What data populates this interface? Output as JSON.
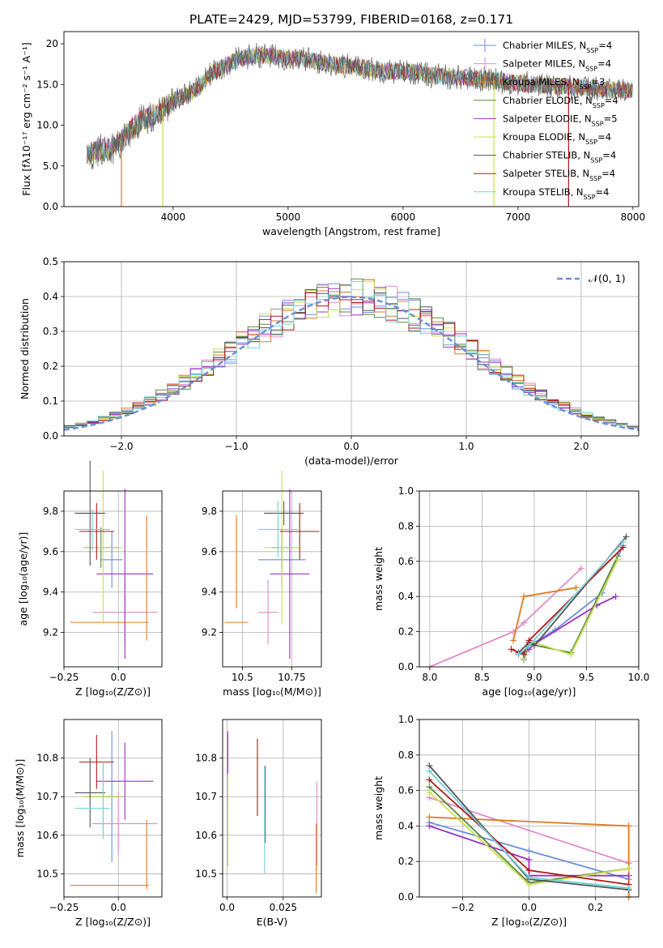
{
  "figure": {
    "title": "PLATE=2429, MJD=53799, FIBERID=0168, z=0.171"
  },
  "legend": {
    "labels": [
      {
        "pre": "Chabrier MILES, N",
        "sub": "SSP",
        "post": "=4",
        "color": "#6a8fdc"
      },
      {
        "pre": "Salpeter MILES, N",
        "sub": "SSP",
        "post": "=4",
        "color": "#e28bc7"
      },
      {
        "pre": "Kroupa MILES, N",
        "sub": "SSP",
        "post": "=3",
        "color": "#e07a20"
      },
      {
        "pre": "Chabrier ELODIE, N",
        "sub": "SSP",
        "post": "=4",
        "color": "#5a8a3a"
      },
      {
        "pre": "Salpeter ELODIE, N",
        "sub": "SSP",
        "post": "=5",
        "color": "#9b30c0"
      },
      {
        "pre": "Kroupa ELODIE, N",
        "sub": "SSP",
        "post": "=4",
        "color": "#c8e050"
      },
      {
        "pre": "Chabrier STELIB, N",
        "sub": "SSP",
        "post": "=4",
        "color": "#555555"
      },
      {
        "pre": "Salpeter STELIB, N",
        "sub": "SSP",
        "post": "=4",
        "color": "#b01818"
      },
      {
        "pre": "Kroupa STELIB, N",
        "sub": "SSP",
        "post": "=4",
        "color": "#70d0d8"
      }
    ],
    "normal_label": "𝒩(0, 1)",
    "normal_color": "#6a8fdc"
  },
  "chart_data": [
    {
      "type": "line",
      "id": "spectrum",
      "xlabel": "wavelength [Angstrom, rest frame]",
      "ylabel": "Flux [fλ10⁻¹⁷ erg cm⁻² s⁻¹ A⁻¹]",
      "xlim": [
        3050,
        8050
      ],
      "ylim": [
        0,
        21.5
      ],
      "xticks": [
        4000,
        5000,
        6000,
        7000,
        8000
      ],
      "yticks": [
        0,
        5,
        10,
        15,
        20
      ],
      "x": [
        3250,
        3350,
        3450,
        3550,
        3650,
        3750,
        3850,
        3950,
        4050,
        4150,
        4250,
        4350,
        4450,
        4550,
        4650,
        4750,
        4850,
        4950,
        5050,
        5150,
        5250,
        5350,
        5450,
        5550,
        5650,
        5750,
        5850,
        5950,
        6050,
        6150,
        6250,
        6350,
        6450,
        6550,
        6650,
        6750,
        6850,
        6950,
        7050,
        7150,
        7250,
        7350,
        7450,
        7550,
        7650,
        7750
      ],
      "y": [
        6.3,
        6.9,
        7.0,
        8.0,
        9.8,
        10.8,
        11.4,
        12.5,
        13.4,
        13.9,
        15.0,
        16.6,
        17.3,
        18.0,
        18.4,
        18.6,
        18.5,
        18.3,
        18.3,
        18.1,
        17.8,
        17.6,
        17.4,
        17.2,
        17.1,
        16.8,
        16.7,
        16.6,
        16.6,
        16.3,
        16.1,
        16.0,
        15.9,
        15.8,
        15.7,
        15.6,
        15.4,
        15.2,
        15.1,
        15.0,
        14.9,
        14.8,
        14.7,
        14.6,
        14.5,
        14.3
      ],
      "drops": [
        {
          "x": 3550,
          "color": "#e07a20"
        },
        {
          "x": 3910,
          "color": "#c8e050"
        },
        {
          "x": 6790,
          "color": "#c8e050"
        },
        {
          "x": 7440,
          "color": "#b01818"
        }
      ]
    },
    {
      "type": "histogram",
      "id": "residuals",
      "xlabel": "(data-model)/error",
      "ylabel": "Normed distribution",
      "xlim": [
        -2.5,
        2.5
      ],
      "ylim": [
        0,
        0.5
      ],
      "xticks": [
        -2,
        -1,
        0,
        1,
        2
      ],
      "yticks": [
        0.0,
        0.1,
        0.2,
        0.3,
        0.4,
        0.5
      ],
      "bin_width": 0.1,
      "normal_curve": {
        "mean": 0,
        "sigma": 1
      }
    },
    {
      "type": "scatter",
      "id": "age-vs-Z",
      "xlabel": "Z [log₁₀(Z/Z⊙)]",
      "ylabel": "age  [log₁₀(age/yr)]",
      "xlim": [
        -0.25,
        0.2
      ],
      "ylim": [
        9.03,
        9.9
      ],
      "xticks": [
        -0.25,
        0.0
      ],
      "yticks": [
        9.2,
        9.4,
        9.6,
        9.8
      ],
      "points": [
        {
          "x": -0.03,
          "y": 9.56,
          "xerr": 0.05,
          "yerr": 0.14,
          "color": "#6a8fdc"
        },
        {
          "x": 0.03,
          "y": 9.3,
          "xerr": 0.15,
          "yerr": 0.16,
          "color": "#e28bc7"
        },
        {
          "x": -0.04,
          "y": 9.25,
          "xerr": 0.18,
          "yerr": 0.0,
          "color": "#e07a20"
        },
        {
          "x": 0.13,
          "y": 9.47,
          "xerr": 0.0,
          "yerr": 0.31,
          "color": "#e07a20"
        },
        {
          "x": -0.08,
          "y": 9.62,
          "xerr": 0.08,
          "yerr": 0.1,
          "color": "#5a8a3a"
        },
        {
          "x": 0.03,
          "y": 9.49,
          "xerr": 0.13,
          "yerr": 0.42,
          "color": "#9b30c0"
        },
        {
          "x": -0.07,
          "y": 9.62,
          "xerr": 0.09,
          "yerr": 0.38,
          "color": "#c8e050"
        },
        {
          "x": -0.13,
          "y": 9.79,
          "xerr": 0.07,
          "yerr": 0.26,
          "color": "#555555"
        },
        {
          "x": -0.1,
          "y": 9.7,
          "xerr": 0.08,
          "yerr": 0.14,
          "color": "#b01818"
        },
        {
          "x": -0.12,
          "y": 9.71,
          "xerr": 0.08,
          "yerr": 0.1,
          "color": "#70d0d8"
        }
      ]
    },
    {
      "type": "scatter",
      "id": "age-vs-mass",
      "xlabel": "mass [log₁₀(M/M⊙)]",
      "ylabel": "",
      "xlim": [
        10.4,
        10.9
      ],
      "ylim": [
        9.03,
        9.9
      ],
      "xticks": [
        10.5,
        10.75
      ],
      "yticks": [
        9.2,
        9.4,
        9.6,
        9.8
      ],
      "points": [
        {
          "x": 10.7,
          "y": 9.56,
          "xerr": 0.12,
          "yerr": 0.14,
          "color": "#6a8fdc"
        },
        {
          "x": 10.63,
          "y": 9.3,
          "xerr": 0.05,
          "yerr": 0.16,
          "color": "#e28bc7"
        },
        {
          "x": 10.47,
          "y": 9.25,
          "xerr": 0.06,
          "yerr": 0.0,
          "color": "#e07a20"
        },
        {
          "x": 10.47,
          "y": 9.55,
          "xerr": 0.0,
          "yerr": 0.23,
          "color": "#e07a20"
        },
        {
          "x": 10.7,
          "y": 9.62,
          "xerr": 0.05,
          "yerr": 0.1,
          "color": "#5a8a3a"
        },
        {
          "x": 10.74,
          "y": 9.49,
          "xerr": 0.1,
          "yerr": 0.42,
          "color": "#9b30c0"
        },
        {
          "x": 10.7,
          "y": 9.62,
          "xerr": 0.09,
          "yerr": 0.38,
          "color": "#c8e050"
        },
        {
          "x": 10.71,
          "y": 9.79,
          "xerr": 0.1,
          "yerr": 0.06,
          "color": "#555555"
        },
        {
          "x": 10.79,
          "y": 9.7,
          "xerr": 0.1,
          "yerr": 0.14,
          "color": "#b01818"
        },
        {
          "x": 10.68,
          "y": 9.71,
          "xerr": 0.1,
          "yerr": 0.14,
          "color": "#70d0d8"
        }
      ]
    },
    {
      "type": "line",
      "id": "massweight-vs-age",
      "xlabel": "age  [log₁₀(age/yr)]",
      "ylabel": "mass weight",
      "xlim": [
        7.9,
        10.0
      ],
      "ylim": [
        0,
        1.0
      ],
      "xticks": [
        8.0,
        8.5,
        9.0,
        9.5,
        10.0
      ],
      "yticks": [
        0.0,
        0.2,
        0.4,
        0.6,
        0.8,
        1.0
      ],
      "series": [
        {
          "color": "#6a8fdc",
          "x": [
            8.9,
            8.95,
            9.2,
            9.65,
            9.85
          ],
          "y": [
            0.04,
            0.12,
            0.21,
            0.42,
            0.69
          ]
        },
        {
          "color": "#e28bc7",
          "x": [
            8.0,
            8.8,
            8.9,
            9.45
          ],
          "y": [
            0.0,
            0.2,
            0.25,
            0.56
          ]
        },
        {
          "color": "#e07a20",
          "x": [
            8.8,
            8.9,
            9.4
          ],
          "y": [
            0.15,
            0.4,
            0.45
          ]
        },
        {
          "color": "#5a8a3a",
          "x": [
            8.9,
            8.95,
            9.35,
            9.8
          ],
          "y": [
            0.05,
            0.13,
            0.08,
            0.63
          ]
        },
        {
          "color": "#9b30c0",
          "x": [
            8.85,
            8.95,
            9.0,
            9.6,
            9.78
          ],
          "y": [
            0.07,
            0.1,
            0.13,
            0.35,
            0.4
          ]
        },
        {
          "color": "#c8e050",
          "x": [
            8.9,
            8.95,
            9.35,
            9.8
          ],
          "y": [
            0.05,
            0.15,
            0.07,
            0.61
          ]
        },
        {
          "color": "#555555",
          "x": [
            8.85,
            8.95,
            9.0,
            9.88
          ],
          "y": [
            0.08,
            0.14,
            0.12,
            0.74
          ]
        },
        {
          "color": "#b01818",
          "x": [
            8.78,
            8.9,
            8.95,
            9.85
          ],
          "y": [
            0.1,
            0.07,
            0.15,
            0.68
          ]
        },
        {
          "color": "#70d0d8",
          "x": [
            8.85,
            8.95,
            9.85
          ],
          "y": [
            0.07,
            0.12,
            0.71
          ]
        }
      ]
    },
    {
      "type": "scatter",
      "id": "mass-vs-Z",
      "xlabel": "Z [log₁₀(Z/Z⊙)]",
      "ylabel": "mass [log₁₀(M/M⊙)]",
      "xlim": [
        -0.25,
        0.2
      ],
      "ylim": [
        10.44,
        10.9
      ],
      "xticks": [
        -0.25,
        0.0
      ],
      "yticks": [
        10.5,
        10.6,
        10.7,
        10.8
      ],
      "points": [
        {
          "x": -0.03,
          "y": 10.7,
          "xerr": 0.05,
          "yerr": 0.17,
          "color": "#6a8fdc"
        },
        {
          "x": 0.03,
          "y": 10.63,
          "xerr": 0.15,
          "yerr": 0.0,
          "color": "#e28bc7"
        },
        {
          "x": 0.0,
          "y": 10.63,
          "xerr": 0.0,
          "yerr": 0.08,
          "color": "#e28bc7"
        },
        {
          "x": -0.04,
          "y": 10.47,
          "xerr": 0.18,
          "yerr": 0.0,
          "color": "#e07a20"
        },
        {
          "x": 0.13,
          "y": 10.55,
          "xerr": 0.0,
          "yerr": 0.09,
          "color": "#e07a20"
        },
        {
          "x": -0.08,
          "y": 10.7,
          "xerr": 0.08,
          "yerr": 0.0,
          "color": "#5a8a3a"
        },
        {
          "x": 0.03,
          "y": 10.74,
          "xerr": 0.13,
          "yerr": 0.1,
          "color": "#9b30c0"
        },
        {
          "x": -0.07,
          "y": 10.7,
          "xerr": 0.09,
          "yerr": 0.09,
          "color": "#c8e050"
        },
        {
          "x": -0.13,
          "y": 10.71,
          "xerr": 0.07,
          "yerr": 0.09,
          "color": "#555555"
        },
        {
          "x": -0.1,
          "y": 10.79,
          "xerr": 0.08,
          "yerr": 0.07,
          "color": "#b01818"
        },
        {
          "x": -0.12,
          "y": 10.67,
          "xerr": 0.08,
          "yerr": 0.0,
          "color": "#70d0d8"
        },
        {
          "x": -0.07,
          "y": 10.69,
          "xerr": 0.0,
          "yerr": 0.1,
          "color": "#70d0d8"
        }
      ]
    },
    {
      "type": "scatter",
      "id": "mass-vs-EBV",
      "xlabel": "E(B-V)",
      "ylabel": "",
      "xlim": [
        -0.002,
        0.042
      ],
      "ylim": [
        10.44,
        10.9
      ],
      "xticks": [
        0.0,
        0.025
      ],
      "yticks": [
        10.5,
        10.6,
        10.7,
        10.8
      ],
      "points": [
        {
          "x": 0.0003,
          "y": 10.69,
          "xerr": 0.0,
          "yerr": 0.17,
          "color": "#6a8fdc"
        },
        {
          "x": 0.04,
          "y": 10.63,
          "xerr": 0.0,
          "yerr": 0.11,
          "color": "#e28bc7"
        },
        {
          "x": 0.0397,
          "y": 10.54,
          "xerr": 0.0,
          "yerr": 0.09,
          "color": "#e07a20"
        },
        {
          "x": 0.0003,
          "y": 10.77,
          "xerr": 0.0,
          "yerr": 0.1,
          "color": "#9b30c0"
        },
        {
          "x": 0.0003,
          "y": 10.64,
          "xerr": 0.0,
          "yerr": 0.12,
          "color": "#c8e050"
        },
        {
          "x": 0.017,
          "y": 10.68,
          "xerr": 0.0,
          "yerr": 0.1,
          "color": "#555555"
        },
        {
          "x": 0.0135,
          "y": 10.75,
          "xerr": 0.0,
          "yerr": 0.1,
          "color": "#b01818"
        },
        {
          "x": 0.0167,
          "y": 10.64,
          "xerr": 0.0,
          "yerr": 0.14,
          "color": "#70d0d8"
        }
      ]
    },
    {
      "type": "line",
      "id": "massweight-vs-Z",
      "xlabel": "Z [log₁₀(Z/Z⊙)]",
      "ylabel": "mass weight",
      "xlim": [
        -0.33,
        0.33
      ],
      "ylim": [
        0,
        1.0
      ],
      "xticks": [
        -0.2,
        0.0,
        0.2
      ],
      "yticks": [
        0.0,
        0.2,
        0.4,
        0.6,
        0.8,
        1.0
      ],
      "series": [
        {
          "color": "#6a8fdc",
          "x": [
            -0.3,
            0.0,
            0.3
          ],
          "y": [
            0.42,
            0.26,
            0.1
          ]
        },
        {
          "color": "#e28bc7",
          "x": [
            -0.3,
            0.3
          ],
          "y": [
            0.56,
            0.19
          ]
        },
        {
          "color": "#e07a20",
          "x": [
            -0.3,
            0.3,
            0.3
          ],
          "y": [
            0.45,
            0.4,
            0.0
          ]
        },
        {
          "color": "#5a8a3a",
          "x": [
            -0.3,
            0.0,
            0.3
          ],
          "y": [
            0.62,
            0.08,
            0.16
          ]
        },
        {
          "color": "#9b30c0",
          "x": [
            -0.3,
            0.0,
            0.0,
            0.3
          ],
          "y": [
            0.4,
            0.21,
            0.12,
            0.12
          ]
        },
        {
          "color": "#c8e050",
          "x": [
            -0.3,
            0.0,
            0.3
          ],
          "y": [
            0.59,
            0.07,
            0.16
          ]
        },
        {
          "color": "#555555",
          "x": [
            -0.3,
            0.0,
            0.3
          ],
          "y": [
            0.74,
            0.1,
            0.04
          ]
        },
        {
          "color": "#b01818",
          "x": [
            -0.3,
            0.0,
            0.3
          ],
          "y": [
            0.66,
            0.15,
            0.07
          ]
        },
        {
          "color": "#70d0d8",
          "x": [
            -0.3,
            0.0,
            0.3
          ],
          "y": [
            0.71,
            0.11,
            0.05
          ]
        }
      ]
    }
  ]
}
